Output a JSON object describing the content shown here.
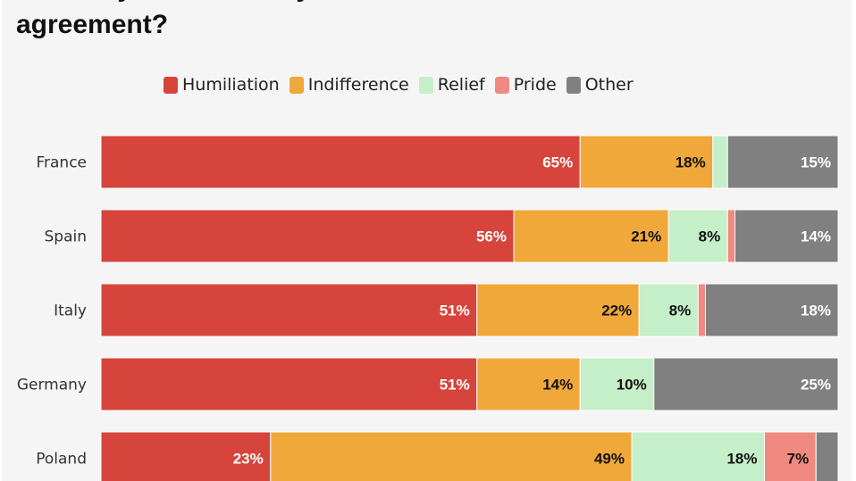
{
  "title": "to what you felt when you learned about this\nagreement?",
  "chart_data": {
    "type": "bar",
    "orientation": "horizontal",
    "stacked": true,
    "categories": [
      "France",
      "Spain",
      "Italy",
      "Germany",
      "Poland"
    ],
    "series": [
      {
        "name": "Humiliation",
        "color": "#d6443c",
        "values": [
          65,
          56,
          51,
          51,
          23
        ]
      },
      {
        "name": "Indifference",
        "color": "#f1a83b",
        "values": [
          18,
          21,
          22,
          14,
          49
        ]
      },
      {
        "name": "Relief",
        "color": "#c4efc9",
        "values": [
          2,
          8,
          8,
          10,
          18
        ]
      },
      {
        "name": "Pride",
        "color": "#f08a80",
        "values": [
          0,
          1,
          1,
          0,
          7
        ]
      },
      {
        "name": "Other",
        "color": "#808080",
        "values": [
          15,
          14,
          18,
          25,
          3
        ]
      }
    ],
    "data_labels": [
      [
        "65%",
        "18%",
        "",
        "",
        "15%"
      ],
      [
        "56%",
        "21%",
        "8%",
        "",
        "14%"
      ],
      [
        "51%",
        "22%",
        "8%",
        "",
        "18%"
      ],
      [
        "51%",
        "14%",
        "10%",
        "",
        "25%"
      ],
      [
        "23%",
        "49%",
        "18%",
        "7%",
        ""
      ]
    ],
    "xlim": [
      0,
      100
    ],
    "legend_position": "top",
    "grid": false,
    "xlabel": "",
    "ylabel": ""
  }
}
